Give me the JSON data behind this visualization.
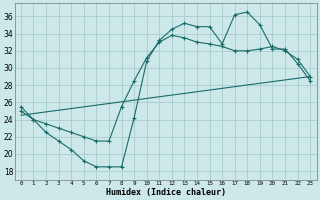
{
  "xlabel": "Humidex (Indice chaleur)",
  "background_color": "#cce8e8",
  "grid_color": "#aacccc",
  "line_color": "#1a6b6b",
  "xlim": [
    -0.5,
    23.5
  ],
  "ylim": [
    17.0,
    37.5
  ],
  "xticks": [
    0,
    1,
    2,
    3,
    4,
    5,
    6,
    7,
    8,
    9,
    10,
    11,
    12,
    13,
    14,
    15,
    16,
    17,
    18,
    19,
    20,
    21,
    22,
    23
  ],
  "yticks": [
    18,
    20,
    22,
    24,
    26,
    28,
    30,
    32,
    34,
    36
  ],
  "line1_x": [
    0,
    1,
    2,
    3,
    4,
    5,
    6,
    7,
    8,
    9,
    10,
    11,
    12,
    13,
    14,
    15,
    16,
    17,
    18,
    19,
    20,
    21,
    22,
    23
  ],
  "line1_y": [
    25.0,
    24.0,
    22.5,
    21.5,
    20.5,
    19.2,
    18.5,
    18.5,
    18.5,
    24.2,
    30.8,
    33.2,
    34.5,
    35.2,
    34.8,
    34.8,
    32.8,
    36.2,
    36.5,
    35.0,
    32.2,
    32.2,
    30.5,
    28.5
  ],
  "line2_x": [
    0,
    1,
    2,
    3,
    4,
    5,
    6,
    7,
    8,
    9,
    10,
    11,
    12,
    13,
    14,
    15,
    16,
    17,
    18,
    19,
    20,
    21,
    22,
    23
  ],
  "line2_y": [
    25.5,
    24.0,
    23.5,
    23.0,
    22.5,
    22.0,
    21.5,
    21.5,
    25.5,
    28.5,
    31.2,
    33.0,
    33.8,
    33.5,
    33.0,
    32.8,
    32.5,
    32.0,
    32.0,
    32.2,
    32.5,
    32.0,
    31.0,
    29.0
  ],
  "line3_x": [
    0,
    23
  ],
  "line3_y": [
    24.5,
    29.0
  ]
}
